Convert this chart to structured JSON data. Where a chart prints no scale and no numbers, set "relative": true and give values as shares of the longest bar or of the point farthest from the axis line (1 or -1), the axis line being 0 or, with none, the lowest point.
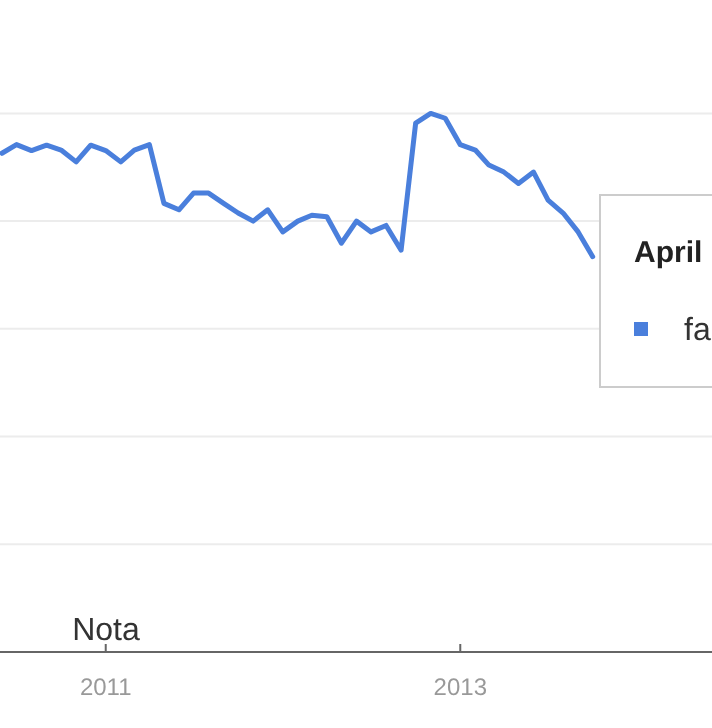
{
  "chart_data": {
    "type": "line",
    "relative": true,
    "grid": "y",
    "legend": "right",
    "legend_title": "April",
    "x": [
      "2010-06",
      "2010-07",
      "2010-08",
      "2010-09",
      "2010-10",
      "2010-11",
      "2010-12",
      "2011-01",
      "2011-02",
      "2011-03",
      "2011-04",
      "2011-05",
      "2011-06",
      "2011-07",
      "2011-08",
      "2011-09",
      "2011-10",
      "2011-11",
      "2011-12",
      "2012-01",
      "2012-02",
      "2012-03",
      "2012-04",
      "2012-05",
      "2012-06",
      "2012-07",
      "2012-08",
      "2012-09",
      "2012-10",
      "2012-11",
      "2012-12",
      "2013-01",
      "2013-02",
      "2013-03",
      "2013-04",
      "2013-05",
      "2013-06",
      "2013-07",
      "2013-08",
      "2013-09",
      "2013-10"
    ],
    "xlim": [
      "2010-05-28",
      "2014-06-04"
    ],
    "xticks": [
      {
        "value": "2011-01-01",
        "label": "2011"
      },
      {
        "value": "2013-01-01",
        "label": "2013"
      }
    ],
    "series": [
      {
        "name": "fa",
        "color": "#4a7fdc",
        "values": [
          0.926,
          0.942,
          0.931,
          0.941,
          0.932,
          0.91,
          0.941,
          0.931,
          0.91,
          0.932,
          0.942,
          0.833,
          0.821,
          0.852,
          0.852,
          0.833,
          0.815,
          0.8,
          0.821,
          0.78,
          0.8,
          0.811,
          0.808,
          0.759,
          0.8,
          0.78,
          0.792,
          0.746,
          0.982,
          1,
          0.991,
          0.942,
          0.932,
          0.904,
          0.891,
          0.87,
          0.891,
          0.839,
          0.815,
          0.78,
          0.734
        ]
      }
    ],
    "annotations": [
      "Nota"
    ]
  }
}
